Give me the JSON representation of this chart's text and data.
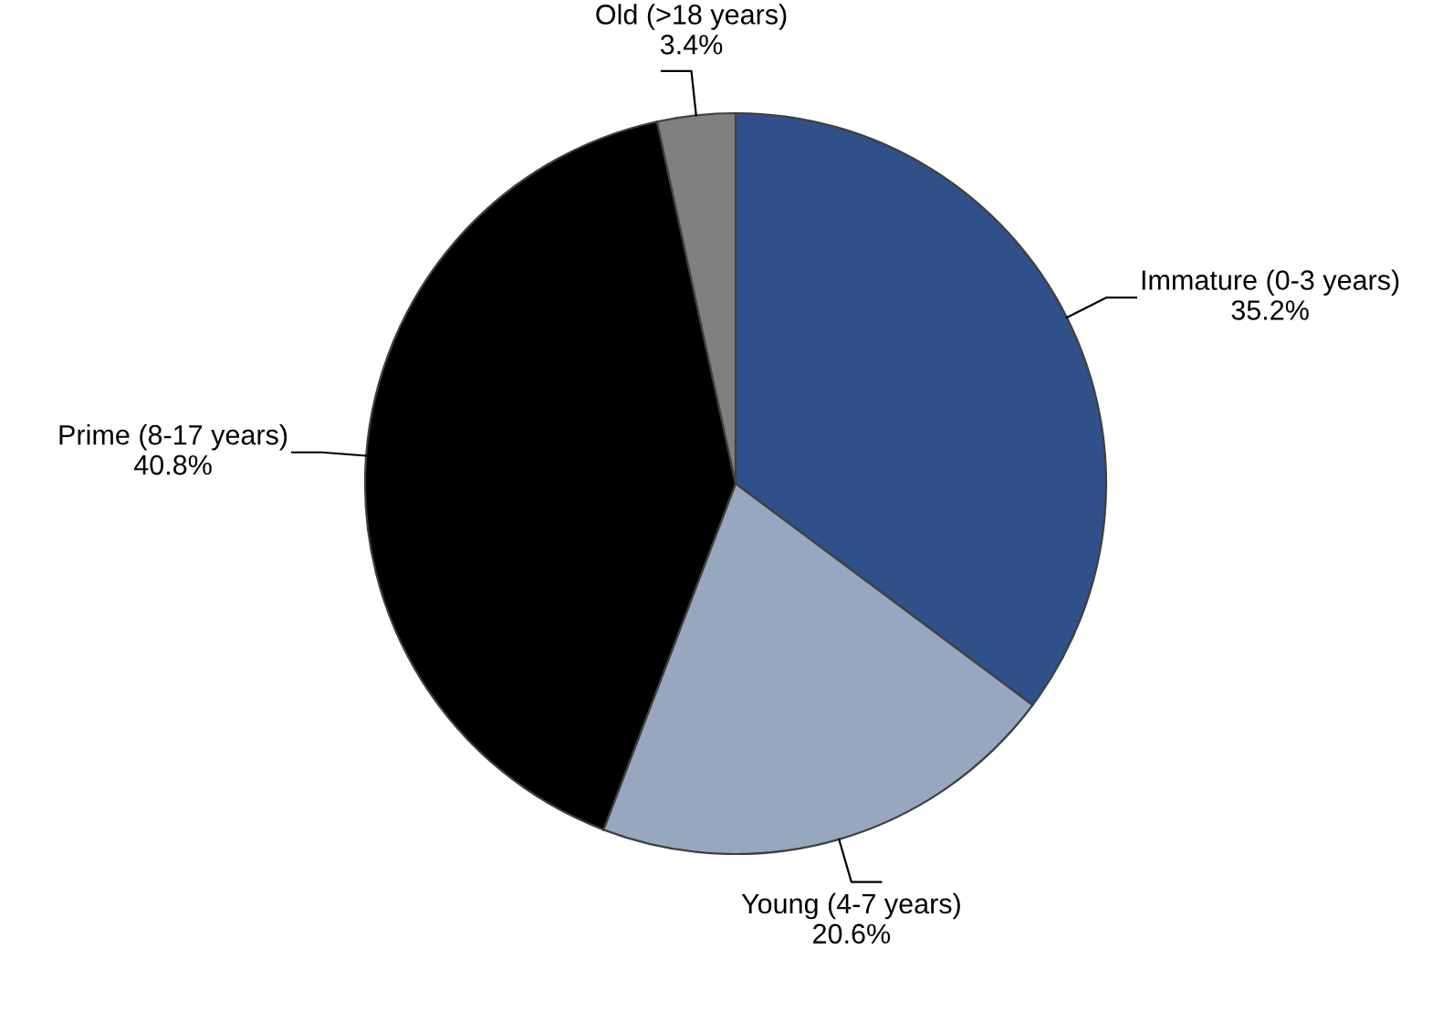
{
  "chart_data": {
    "type": "pie",
    "categories": [
      "Immature (0-3 years)",
      "Young (4-7 years)",
      "Prime (8-17 years)",
      "Old (>18 years)"
    ],
    "values": [
      35.2,
      20.6,
      40.8,
      3.4
    ],
    "value_labels": [
      "35.2%",
      "20.6%",
      "40.8%",
      "3.4%"
    ],
    "colors": [
      "#2f5089",
      "#97a7c0",
      "#000000",
      "#808080"
    ],
    "legend": false
  }
}
